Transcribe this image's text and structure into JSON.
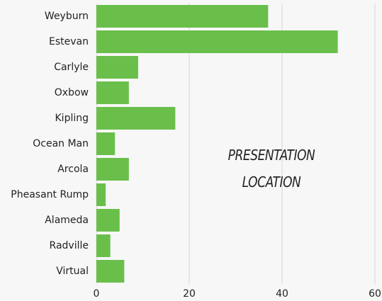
{
  "chart_data": {
    "type": "hbar",
    "annotation": "PRESENTATION LOCATION",
    "categories": [
      "Weyburn",
      "Estevan",
      "Carlyle",
      "Oxbow",
      "Kipling",
      "Ocean Man",
      "Arcola",
      "Pheasant Rump",
      "Alameda",
      "Radville",
      "Virtual"
    ],
    "values": [
      37,
      52,
      9,
      7,
      17,
      4,
      7,
      2,
      5,
      3,
      6
    ],
    "color": "#6abf4b",
    "xlim": [
      0,
      60
    ],
    "xticks": [
      0,
      20,
      40,
      60
    ],
    "grid": true
  }
}
